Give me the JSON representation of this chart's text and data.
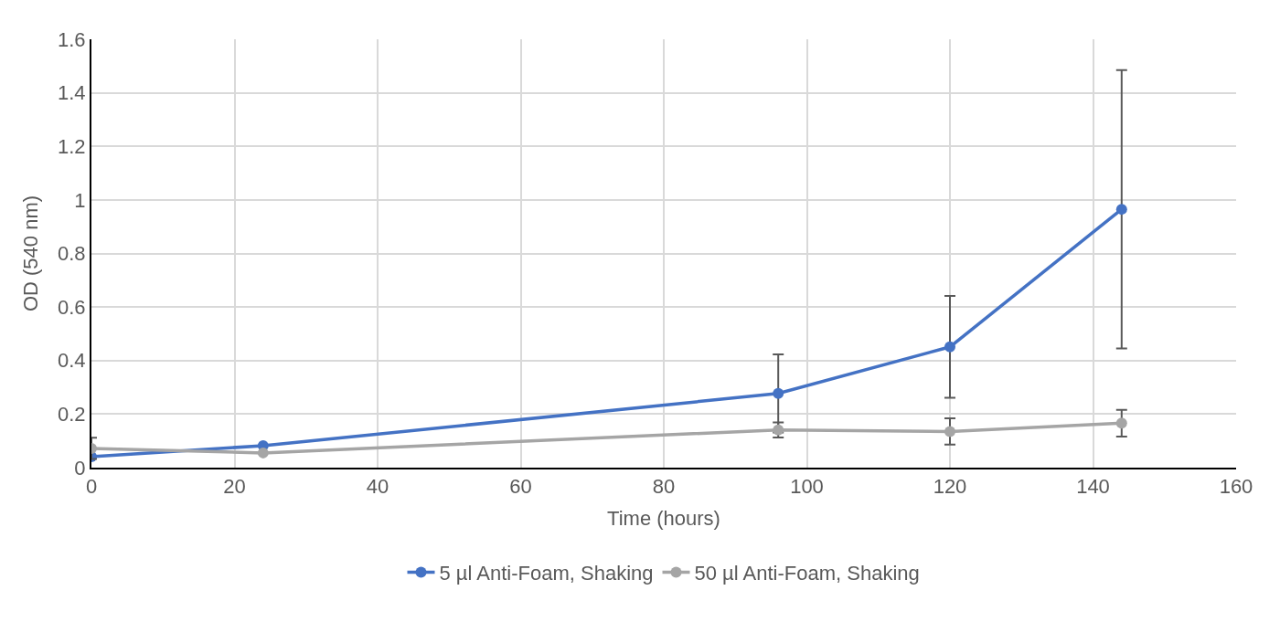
{
  "chart_data": {
    "type": "line",
    "xlabel": "Time (hours)",
    "ylabel": "OD (540 nm)",
    "x": [
      0,
      24,
      96,
      120,
      144
    ],
    "series": [
      {
        "name": "5 µl Anti-Foam, Shaking",
        "color": "#4472c4",
        "values": [
          0.041,
          0.082,
          0.277,
          0.451,
          0.965
        ],
        "errors": [
          null,
          null,
          0.146,
          0.19,
          0.52
        ]
      },
      {
        "name": "50 µl Anti-Foam, Shaking",
        "color": "#a5a5a5",
        "values": [
          0.072,
          0.055,
          0.141,
          0.135,
          0.166
        ],
        "errors": [
          0.04,
          null,
          0.028,
          0.049,
          0.05
        ]
      }
    ],
    "xlim": [
      0,
      160
    ],
    "xticks": [
      0,
      20,
      40,
      60,
      80,
      100,
      120,
      140,
      160
    ],
    "ylim": [
      0,
      1.6
    ],
    "yticks": [
      0,
      0.2,
      0.4,
      0.6,
      0.8,
      1,
      1.2,
      1.4,
      1.6
    ],
    "grid": true,
    "legend": "bottom",
    "marker": "circle",
    "line_style": "solid"
  }
}
